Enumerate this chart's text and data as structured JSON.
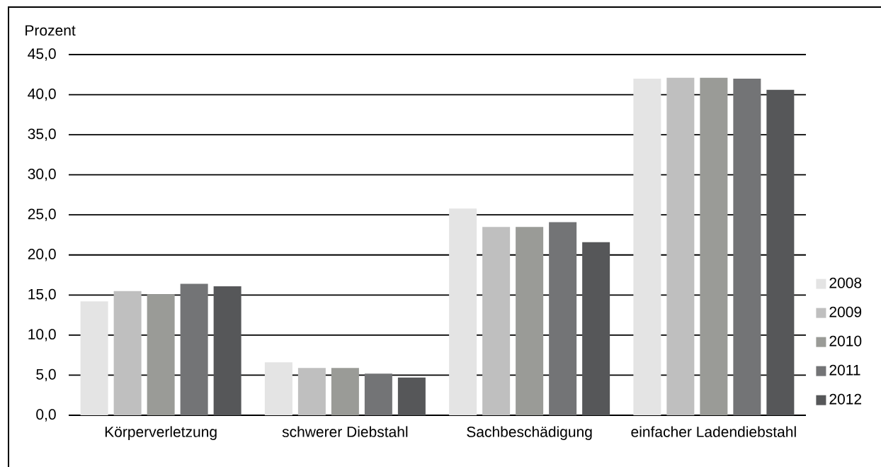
{
  "chart_data": {
    "type": "bar",
    "ylabel": "Prozent",
    "categories": [
      "Körperverletzung",
      "schwerer Diebstahl",
      "Sachbeschädigung",
      "einfacher Ladendiebstahl"
    ],
    "series": [
      {
        "name": "2008",
        "color": "#e4e4e4",
        "values": [
          14.2,
          6.6,
          25.8,
          42.0
        ]
      },
      {
        "name": "2009",
        "color": "#bfbfbf",
        "values": [
          15.5,
          5.9,
          23.5,
          42.1
        ]
      },
      {
        "name": "2010",
        "color": "#9a9b97",
        "values": [
          15.1,
          5.9,
          23.5,
          42.1
        ]
      },
      {
        "name": "2011",
        "color": "#737476",
        "values": [
          16.4,
          5.2,
          24.1,
          42.0
        ]
      },
      {
        "name": "2012",
        "color": "#565759",
        "values": [
          16.1,
          4.7,
          21.6,
          40.6
        ]
      }
    ],
    "ylim": [
      0,
      45
    ],
    "yticks": [
      {
        "value": 0,
        "label": "0,0"
      },
      {
        "value": 5,
        "label": "5,0"
      },
      {
        "value": 10,
        "label": "10,0"
      },
      {
        "value": 15,
        "label": "15,0"
      },
      {
        "value": 20,
        "label": "20,0"
      },
      {
        "value": 25,
        "label": "25,0"
      },
      {
        "value": 30,
        "label": "30,0"
      },
      {
        "value": 35,
        "label": "35,0"
      },
      {
        "value": 40,
        "label": "40,0"
      },
      {
        "value": 45,
        "label": "45,0"
      }
    ],
    "grid": "y",
    "legend": "bottom right"
  }
}
